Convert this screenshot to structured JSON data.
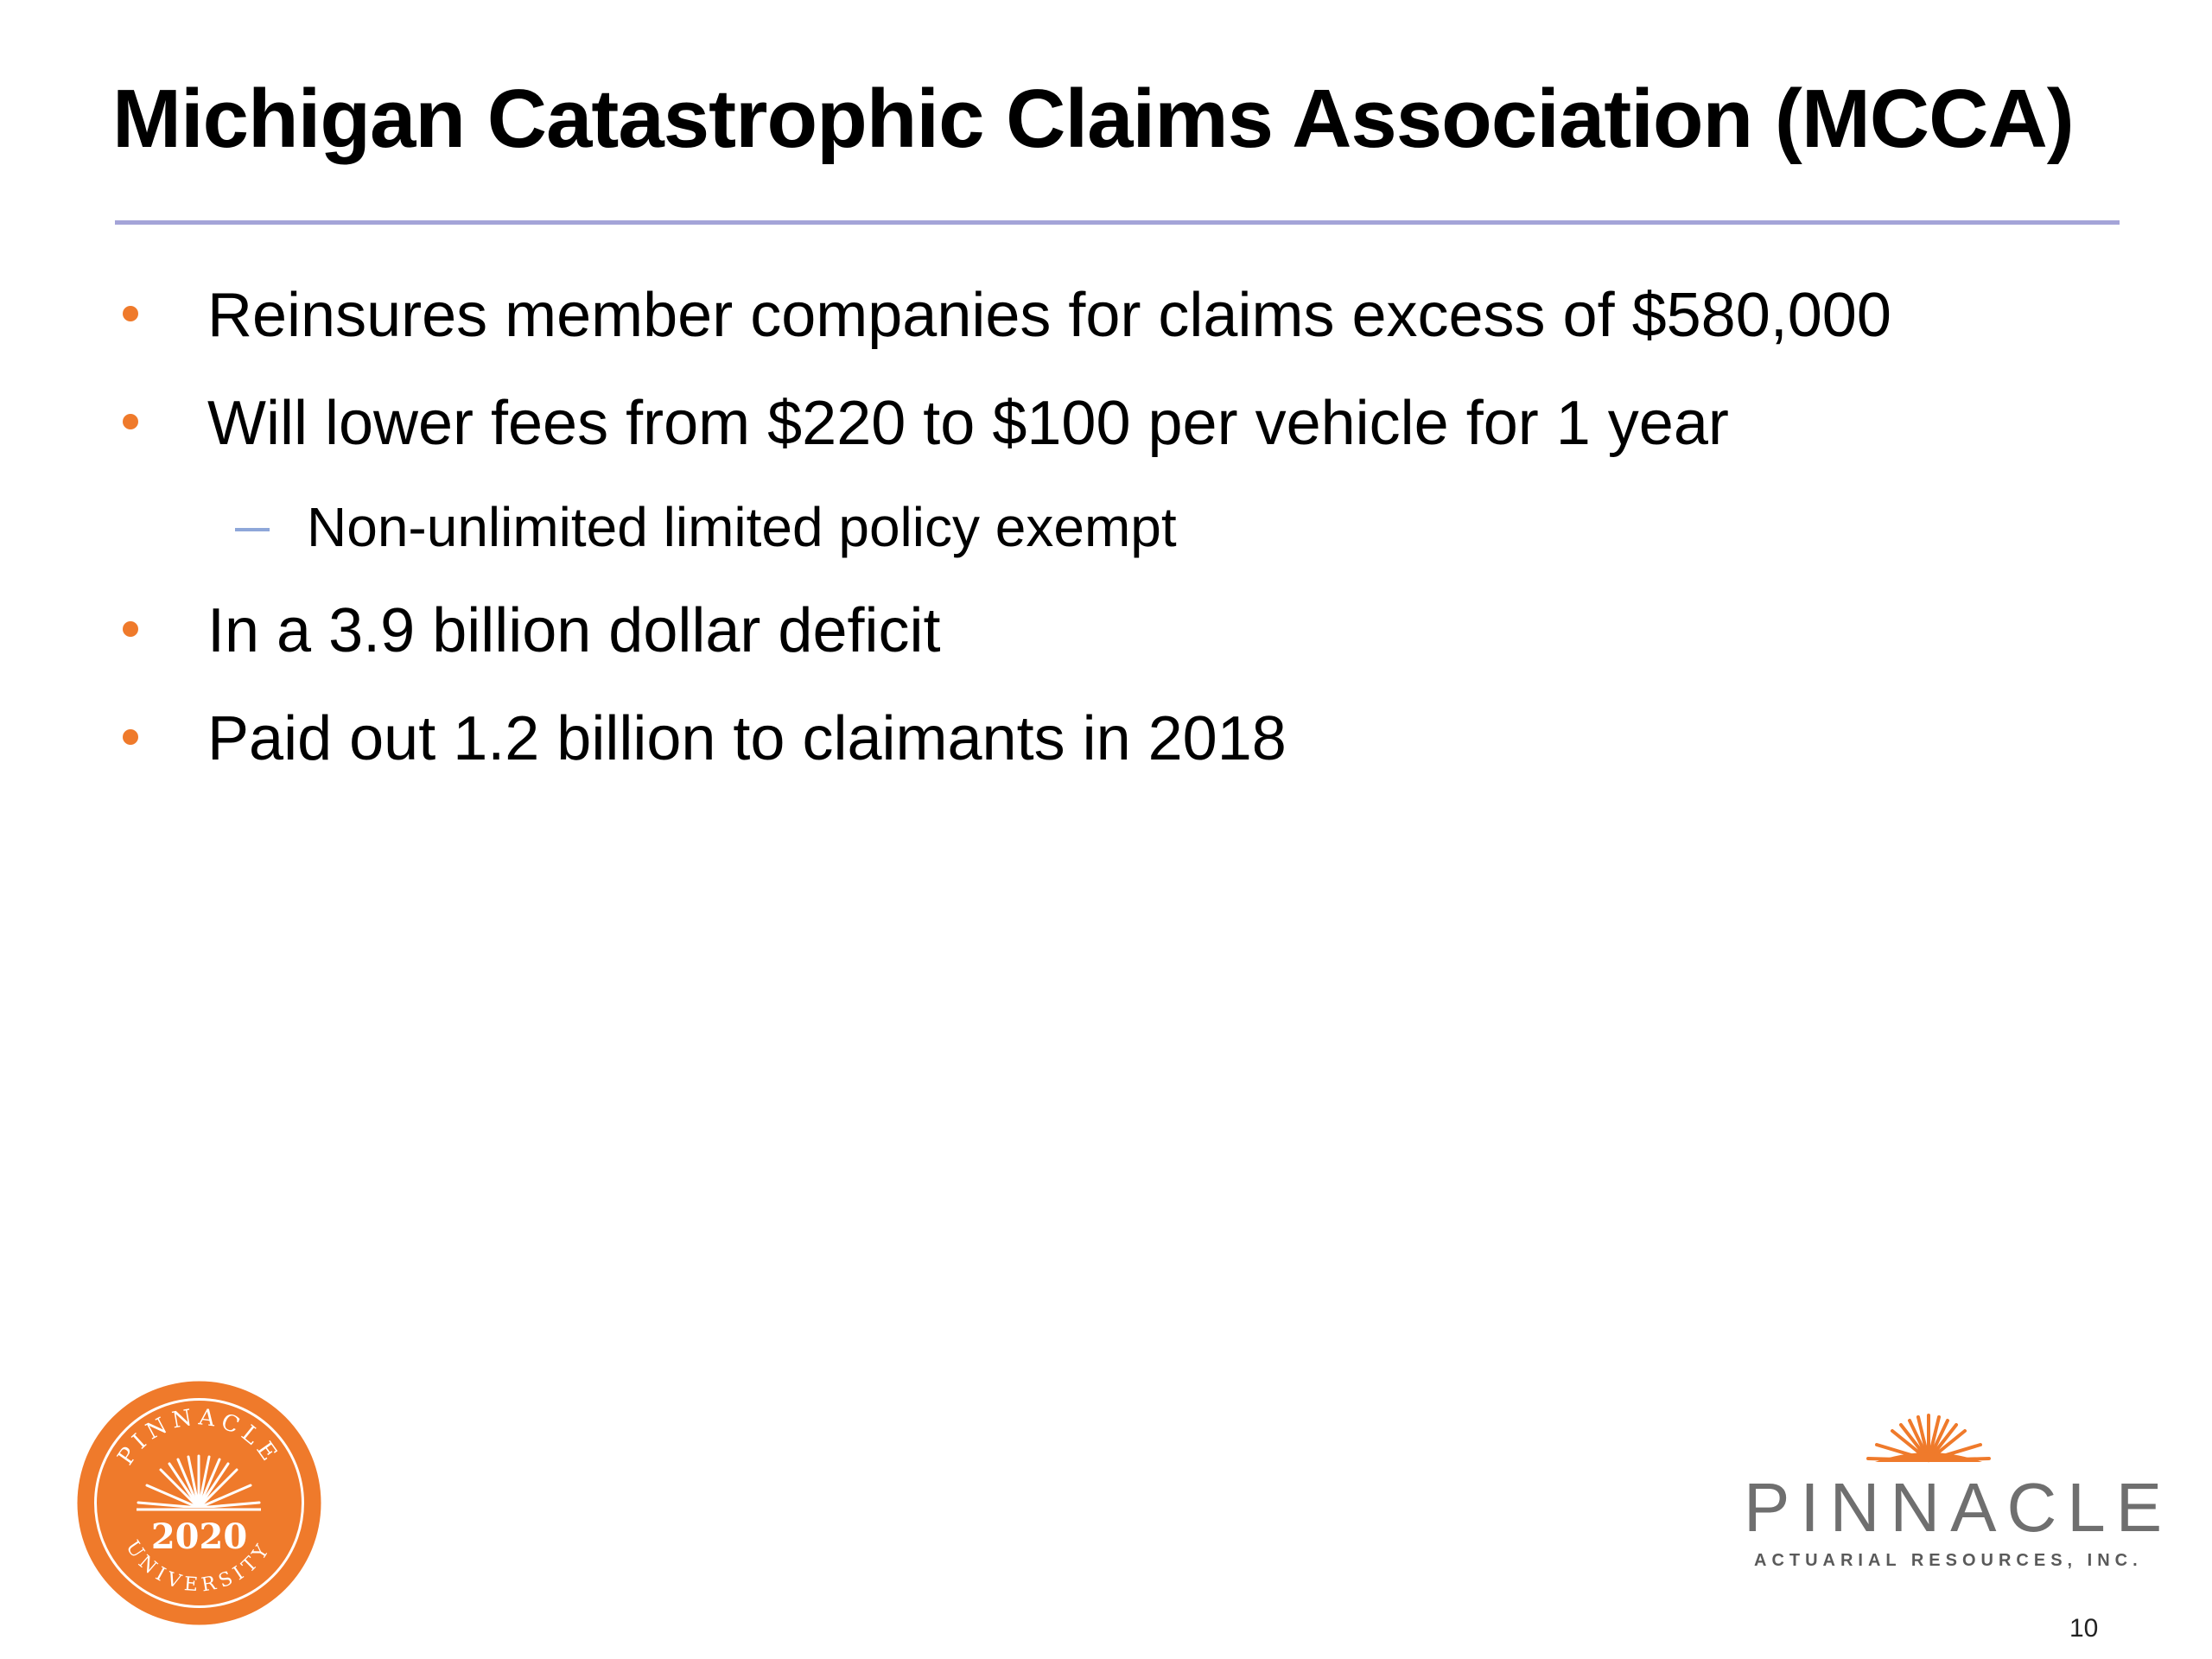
{
  "slide": {
    "title": "Michigan Catastrophic Claims Association (MCCA)",
    "bullets": [
      {
        "level": 1,
        "text": "Reinsures member companies for claims excess of $580,000"
      },
      {
        "level": 1,
        "text": "Will lower fees from $220 to $100 per vehicle for 1 year"
      },
      {
        "level": 2,
        "text": "Non-unlimited limited policy exempt"
      },
      {
        "level": 1,
        "text": "In a 3.9 billion dollar deficit"
      },
      {
        "level": 1,
        "text": "Paid out 1.2 billion to claimants in 2018"
      }
    ],
    "page_number": "10"
  },
  "badge": {
    "top_text": "PINNACLE",
    "year": "2020",
    "bottom_text": "UNIVERSITY"
  },
  "logo": {
    "word": "PINNACLE",
    "subtitle": "ACTUARIAL RESOURCES, INC."
  },
  "colors": {
    "accent_orange": "#ef7a2b",
    "rule": "#a4a4d8",
    "sub_dash": "#8ea7d9",
    "logo_gray": "#6f6f6f"
  }
}
